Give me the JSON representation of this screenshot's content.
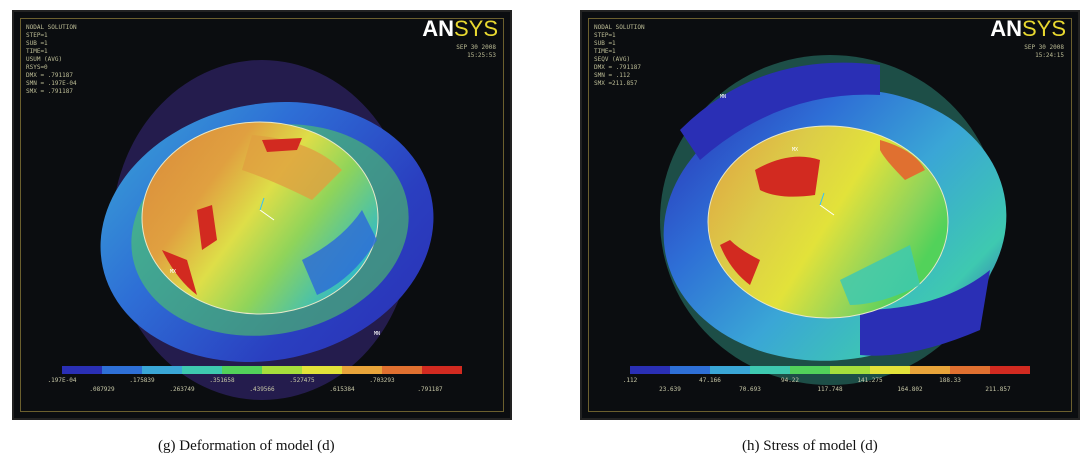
{
  "panels": [
    {
      "logo": {
        "an": "AN",
        "sys": "SYS"
      },
      "info": [
        "NODAL SOLUTION",
        "STEP=1",
        "SUB =1",
        "TIME=1",
        "USUM    (AVG)",
        "RSYS=0",
        "DMX = .791187",
        "SMN = .197E-04",
        "SMX = .791187"
      ],
      "date": [
        "SEP 30 2008",
        "15:25:53"
      ],
      "ticks_top": [
        ".197E-04",
        ".175839",
        ".351658",
        ".527475",
        ".703293"
      ],
      "ticks_bot": [
        ".087929",
        ".263749",
        ".439566",
        ".615384",
        ".791187"
      ],
      "markers": [
        "MX",
        "MN"
      ],
      "caption": "(g) Deformation of model (d)"
    },
    {
      "logo": {
        "an": "AN",
        "sys": "SYS"
      },
      "info": [
        "NODAL SOLUTION",
        "STEP=1",
        "SUB =1",
        "TIME=1",
        "SEQV    (AVG)",
        "DMX = .791187",
        "SMN = .112",
        "SMX =211.857"
      ],
      "date": [
        "SEP 30 2008",
        "15:24:15"
      ],
      "ticks_top": [
        ".112",
        "47.166",
        "94.22",
        "141.275",
        "188.33"
      ],
      "ticks_bot": [
        "23.639",
        "70.693",
        "117.748",
        "164.802",
        "211.857"
      ],
      "markers": [
        "MN",
        "MX"
      ],
      "caption": "(h) Stress of model (d)"
    }
  ],
  "legend_colors": [
    "#2a2fb5",
    "#2e6fd6",
    "#3aa6d6",
    "#3ec9b0",
    "#52d25a",
    "#a6de3c",
    "#e2e23a",
    "#e8a43a",
    "#e07030",
    "#d22a20"
  ]
}
